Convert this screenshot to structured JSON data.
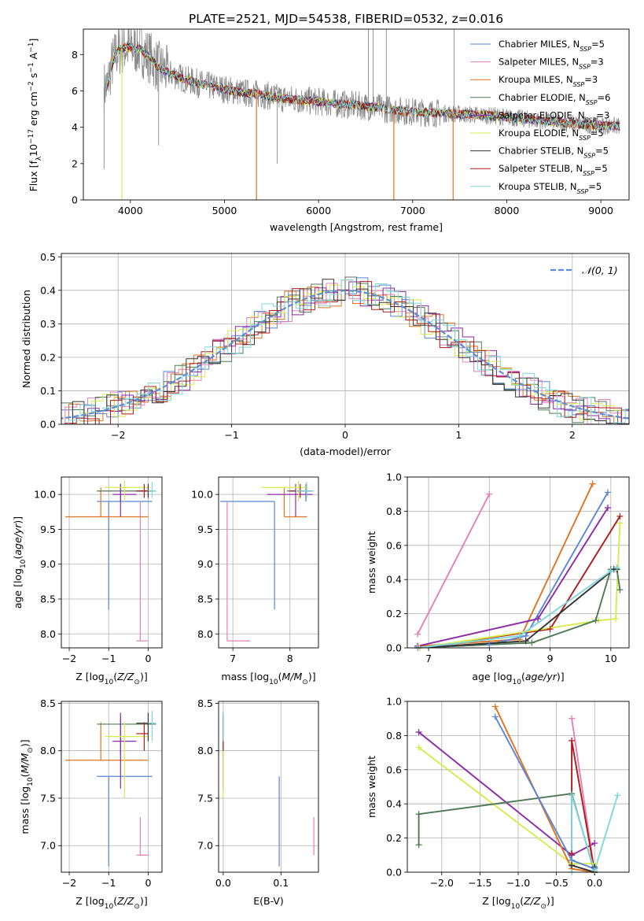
{
  "figure": {
    "title": "PLATE=2521, MJD=54538, FIBERID=0532, z=0.016"
  },
  "colors": {
    "Chabrier MILES": "#5b85d6",
    "Salpeter MILES": "#e57fb8",
    "Kroupa MILES": "#e0741e",
    "Chabrier ELODIE": "#4f7a55",
    "Salpeter ELODIE": "#8e2aa8",
    "Kroupa ELODIE": "#d6ec4c",
    "Chabrier STELIB": "#333333",
    "Salpeter STELIB": "#b01a1a",
    "Kroupa STELIB": "#7fd7dc",
    "data": "#8a8a8a",
    "gaussian": "#5b8ed6"
  },
  "chart_data": [
    {
      "id": "spectrum",
      "type": "line",
      "xlabel": "wavelength [Angstrom, rest frame]",
      "ylabel": "Flux [f",
      "xlim": [
        3500,
        9300
      ],
      "ylim": [
        0,
        9.4
      ],
      "xticks": [
        "4000",
        "5000",
        "6000",
        "7000",
        "8000",
        "9000"
      ],
      "yticks": [
        "0",
        "2",
        "4",
        "6",
        "8"
      ],
      "legend": {
        "position": "top-right",
        "entries": [
          {
            "series": "Chabrier MILES",
            "label": "Chabrier MILES, N",
            "sub": "SSP",
            "tail": "=5"
          },
          {
            "series": "Salpeter MILES",
            "label": "Salpeter MILES, N",
            "sub": "SSP",
            "tail": "=3"
          },
          {
            "series": "Kroupa MILES",
            "label": "Kroupa MILES, N",
            "sub": "SSP",
            "tail": "=3"
          },
          {
            "series": "Chabrier ELODIE",
            "label": "Chabrier ELODIE, N",
            "sub": "SSP",
            "tail": "=6"
          },
          {
            "series": "Salpeter ELODIE",
            "label": "Salpeter ELODIE, N",
            "sub": "SSP",
            "tail": "=3"
          },
          {
            "series": "Kroupa ELODIE",
            "label": "Kroupa ELODIE, N",
            "sub": "SSP",
            "tail": "=5"
          },
          {
            "series": "Chabrier STELIB",
            "label": "Chabrier STELIB, N",
            "sub": "SSP",
            "tail": "=5"
          },
          {
            "series": "Salpeter STELIB",
            "label": "Salpeter STELIB, N",
            "sub": "SSP",
            "tail": "=5"
          },
          {
            "series": "Kroupa STELIB",
            "label": "Kroupa STELIB, N",
            "sub": "SSP",
            "tail": "=5"
          }
        ]
      },
      "continuum": {
        "x": [
          3750,
          3800,
          3850,
          3900,
          3950,
          4000,
          4100,
          4200,
          4300,
          4400,
          4500,
          4600,
          4800,
          5000,
          5200,
          5400,
          5600,
          5800,
          6000,
          6200,
          6400,
          6600,
          6800,
          7000,
          7200,
          7400,
          7600,
          7800,
          8000,
          8200,
          8400,
          8600,
          8800,
          9000,
          9200
        ],
        "y": [
          6.2,
          7.4,
          8.1,
          8.3,
          8.4,
          8.4,
          8.3,
          7.9,
          7.3,
          7.0,
          6.8,
          6.6,
          6.3,
          6.1,
          5.9,
          5.8,
          5.6,
          5.5,
          5.4,
          5.3,
          5.2,
          5.1,
          4.95,
          4.85,
          4.8,
          4.75,
          4.7,
          4.65,
          4.55,
          4.45,
          4.35,
          4.25,
          4.15,
          4.1,
          4.05
        ]
      },
      "model_spikes": [
        {
          "x": 3910,
          "y": 0,
          "series": "Kroupa ELODIE"
        },
        {
          "x": 5340,
          "y": 0,
          "series": "Kroupa MILES"
        },
        {
          "x": 6800,
          "y": 0,
          "series": "Kroupa MILES"
        },
        {
          "x": 7430,
          "y": 0,
          "series": "Kroupa MILES"
        }
      ],
      "data_spikes": [
        {
          "x": 3720,
          "y": 1.7
        },
        {
          "x": 4300,
          "y": 3.0
        },
        {
          "x": 5560,
          "y": 2.0
        },
        {
          "x": 6530,
          "y": 9.4
        },
        {
          "x": 6580,
          "y": 9.4
        },
        {
          "x": 6720,
          "y": 9.4
        },
        {
          "x": 7440,
          "y": 9.4
        }
      ]
    },
    {
      "id": "residual-histogram",
      "type": "area",
      "xlabel": "(data-model)/error",
      "ylabel": "Normed distribution",
      "xlim": [
        -2.5,
        2.5
      ],
      "ylim": [
        0,
        0.51
      ],
      "xticks": [
        "−2",
        "−1",
        "0",
        "1",
        "2"
      ],
      "yticks": [
        "0.0",
        "0.1",
        "0.2",
        "0.3",
        "0.4",
        "0.5"
      ],
      "legend": {
        "position": "top-right",
        "label": "𝒩(0, 1)"
      },
      "bin_width": 0.1
    },
    {
      "id": "age-vs-Z",
      "type": "scatter",
      "xlabel": "Z [log",
      "ylabel": "age  [log",
      "xlim": [
        -2.2,
        0.35
      ],
      "ylim": [
        7.8,
        10.25
      ],
      "xticks": [
        "−2",
        "−1",
        "0"
      ],
      "yticks": [
        "8.0",
        "8.5",
        "9.0",
        "9.5",
        "10.0"
      ]
    },
    {
      "id": "age-vs-mass",
      "type": "scatter",
      "xlabel": "mass [log",
      "ylabel": "",
      "xlim": [
        6.75,
        8.5
      ],
      "ylim": [
        7.8,
        10.25
      ],
      "xticks": [
        "7",
        "8"
      ],
      "yticks": [
        "8.0",
        "8.5",
        "9.0",
        "9.5",
        "10.0"
      ]
    },
    {
      "id": "weight-vs-age",
      "type": "line",
      "xlabel": "age  [log",
      "ylabel": "mass weight",
      "xlim": [
        6.65,
        10.3
      ],
      "ylim": [
        0,
        1
      ],
      "xticks": [
        "7",
        "8",
        "9",
        "10"
      ],
      "yticks": [
        "0.0",
        "0.2",
        "0.4",
        "0.6",
        "0.8",
        "1.0"
      ],
      "series": [
        {
          "name": "Salpeter MILES",
          "x": [
            6.82,
            8.0
          ],
          "y": [
            0.08,
            0.9
          ]
        },
        {
          "name": "Kroupa MILES",
          "x": [
            6.82,
            8.5,
            9.7
          ],
          "y": [
            0.01,
            0.05,
            0.96
          ]
        },
        {
          "name": "Chabrier MILES",
          "x": [
            6.82,
            8.0,
            8.6,
            9.95
          ],
          "y": [
            0.0,
            0.02,
            0.07,
            0.91
          ]
        },
        {
          "name": "Salpeter ELODIE",
          "x": [
            6.82,
            8.8,
            9.95
          ],
          "y": [
            0.01,
            0.17,
            0.82
          ]
        },
        {
          "name": "Salpeter STELIB",
          "x": [
            6.85,
            9.0,
            10.15
          ],
          "y": [
            0.0,
            0.11,
            0.77
          ]
        },
        {
          "name": "Kroupa ELODIE",
          "x": [
            6.85,
            9.8,
            10.08,
            10.15
          ],
          "y": [
            0.0,
            0.16,
            0.17,
            0.73
          ]
        },
        {
          "name": "Chabrier ELODIE",
          "x": [
            6.82,
            8.7,
            9.75,
            10.0,
            10.1,
            10.15
          ],
          "y": [
            0.0,
            0.03,
            0.16,
            0.46,
            0.46,
            0.34
          ]
        },
        {
          "name": "Chabrier STELIB",
          "x": [
            6.82,
            8.6,
            10.05,
            10.1
          ],
          "y": [
            0.0,
            0.04,
            0.46,
            0.46
          ]
        },
        {
          "name": "Kroupa STELIB",
          "x": [
            6.82,
            8.5,
            10.0,
            10.1
          ],
          "y": [
            0.0,
            0.07,
            0.45,
            0.47
          ]
        }
      ]
    },
    {
      "id": "mass-vs-Z",
      "type": "scatter",
      "xlabel": "Z [log",
      "ylabel": "mass [log",
      "xlim": [
        -2.2,
        0.35
      ],
      "ylim": [
        6.72,
        8.52
      ],
      "xticks": [
        "−2",
        "−1",
        "0"
      ],
      "yticks": [
        "7.0",
        "7.5",
        "8.0",
        "8.5"
      ]
    },
    {
      "id": "mass-vs-EBV",
      "type": "scatter",
      "xlabel": "E(B-V)",
      "ylabel": "",
      "xlim": [
        -0.008,
        0.165
      ],
      "ylim": [
        6.72,
        8.52
      ],
      "xticks": [
        "0.0",
        "0.1"
      ],
      "yticks": [
        "7.0",
        "7.5",
        "8.0",
        "8.5"
      ]
    },
    {
      "id": "weight-vs-Z",
      "type": "line",
      "xlabel": "Z [log",
      "ylabel": "mass weight",
      "xlim": [
        -2.45,
        0.45
      ],
      "ylim": [
        0,
        1
      ],
      "xticks": [
        "−2.0",
        "−1.5",
        "−1.0",
        "−0.5",
        "0.0"
      ],
      "yticks": [
        "0.0",
        "0.2",
        "0.4",
        "0.6",
        "0.8",
        "1.0"
      ],
      "series": [
        {
          "name": "Salpeter ELODIE",
          "x": [
            -2.3,
            -0.3,
            0.0
          ],
          "y": [
            0.82,
            0.1,
            0.17
          ]
        },
        {
          "name": "Kroupa ELODIE",
          "x": [
            -2.3,
            -0.3,
            0.0
          ],
          "y": [
            0.73,
            0.05,
            0.05
          ]
        },
        {
          "name": "Chabrier ELODIE",
          "x": [
            -2.3,
            -2.3,
            -0.3,
            0.0
          ],
          "y": [
            0.16,
            0.34,
            0.46,
            0.0
          ]
        },
        {
          "name": "Kroupa MILES",
          "x": [
            -1.3,
            -0.3,
            0.0
          ],
          "y": [
            0.97,
            0.02,
            0.0
          ]
        },
        {
          "name": "Chabrier MILES",
          "x": [
            -1.3,
            -0.3,
            0.0
          ],
          "y": [
            0.91,
            0.07,
            0.02
          ]
        },
        {
          "name": "Salpeter MILES",
          "x": [
            -0.3,
            0.0
          ],
          "y": [
            0.9,
            0.0
          ]
        },
        {
          "name": "Salpeter STELIB",
          "x": [
            -0.3,
            -0.3,
            0.0
          ],
          "y": [
            0.11,
            0.77,
            0.0
          ]
        },
        {
          "name": "Chabrier STELIB",
          "x": [
            -0.3,
            0.0,
            0.0
          ],
          "y": [
            0.04,
            0.0,
            0.03
          ]
        },
        {
          "name": "Kroupa STELIB",
          "x": [
            -0.3,
            -0.3,
            0.0,
            0.3
          ],
          "y": [
            0.0,
            0.45,
            0.01,
            0.45
          ]
        }
      ]
    }
  ],
  "crosses": {
    "columns": [
      "Z",
      "Z_lo",
      "Z_hi",
      "age",
      "age_lo",
      "age_hi",
      "mass",
      "mass_lo",
      "mass_hi",
      "ebv",
      "ebv_lo",
      "ebv_hi"
    ],
    "rows": {
      "Chabrier MILES": [
        -1.0,
        -1.3,
        0.1,
        9.9,
        8.35,
        9.9,
        7.73,
        6.78,
        7.73,
        0.097,
        0.097,
        0.097
      ],
      "Salpeter MILES": [
        -0.2,
        -0.3,
        0.0,
        7.9,
        7.9,
        9.9,
        6.9,
        6.9,
        7.3,
        0.157,
        0.157,
        0.157
      ],
      "Kroupa MILES": [
        -1.2,
        -2.1,
        0.0,
        9.68,
        9.68,
        10.1,
        7.9,
        7.9,
        8.3,
        0.0,
        0.0,
        0.0
      ],
      "Chabrier ELODIE": [
        -0.7,
        -1.3,
        0.2,
        10.05,
        9.9,
        10.15,
        8.28,
        7.95,
        8.35,
        0.0,
        0.0,
        0.0
      ],
      "Salpeter ELODIE": [
        -0.7,
        -0.9,
        -0.3,
        10.0,
        9.68,
        10.15,
        8.1,
        7.6,
        8.4,
        0.0,
        0.0,
        0.0
      ],
      "Kroupa ELODIE": [
        -0.6,
        -1.1,
        0.0,
        10.1,
        9.9,
        10.2,
        8.15,
        7.5,
        8.3,
        0.0,
        0.0,
        0.0
      ],
      "Chabrier STELIB": [
        0.0,
        -0.3,
        0.1,
        10.05,
        9.95,
        10.15,
        8.29,
        8.1,
        8.4,
        0.0,
        0.0,
        0.0
      ],
      "Salpeter STELIB": [
        -0.1,
        -0.3,
        0.0,
        10.05,
        9.95,
        10.15,
        8.18,
        8.0,
        8.3,
        0.0,
        0.0,
        0.0
      ],
      "Kroupa STELIB": [
        0.1,
        0.0,
        0.2,
        10.05,
        9.95,
        10.18,
        8.29,
        8.1,
        8.42,
        0.0,
        0.0,
        0.0
      ]
    }
  }
}
